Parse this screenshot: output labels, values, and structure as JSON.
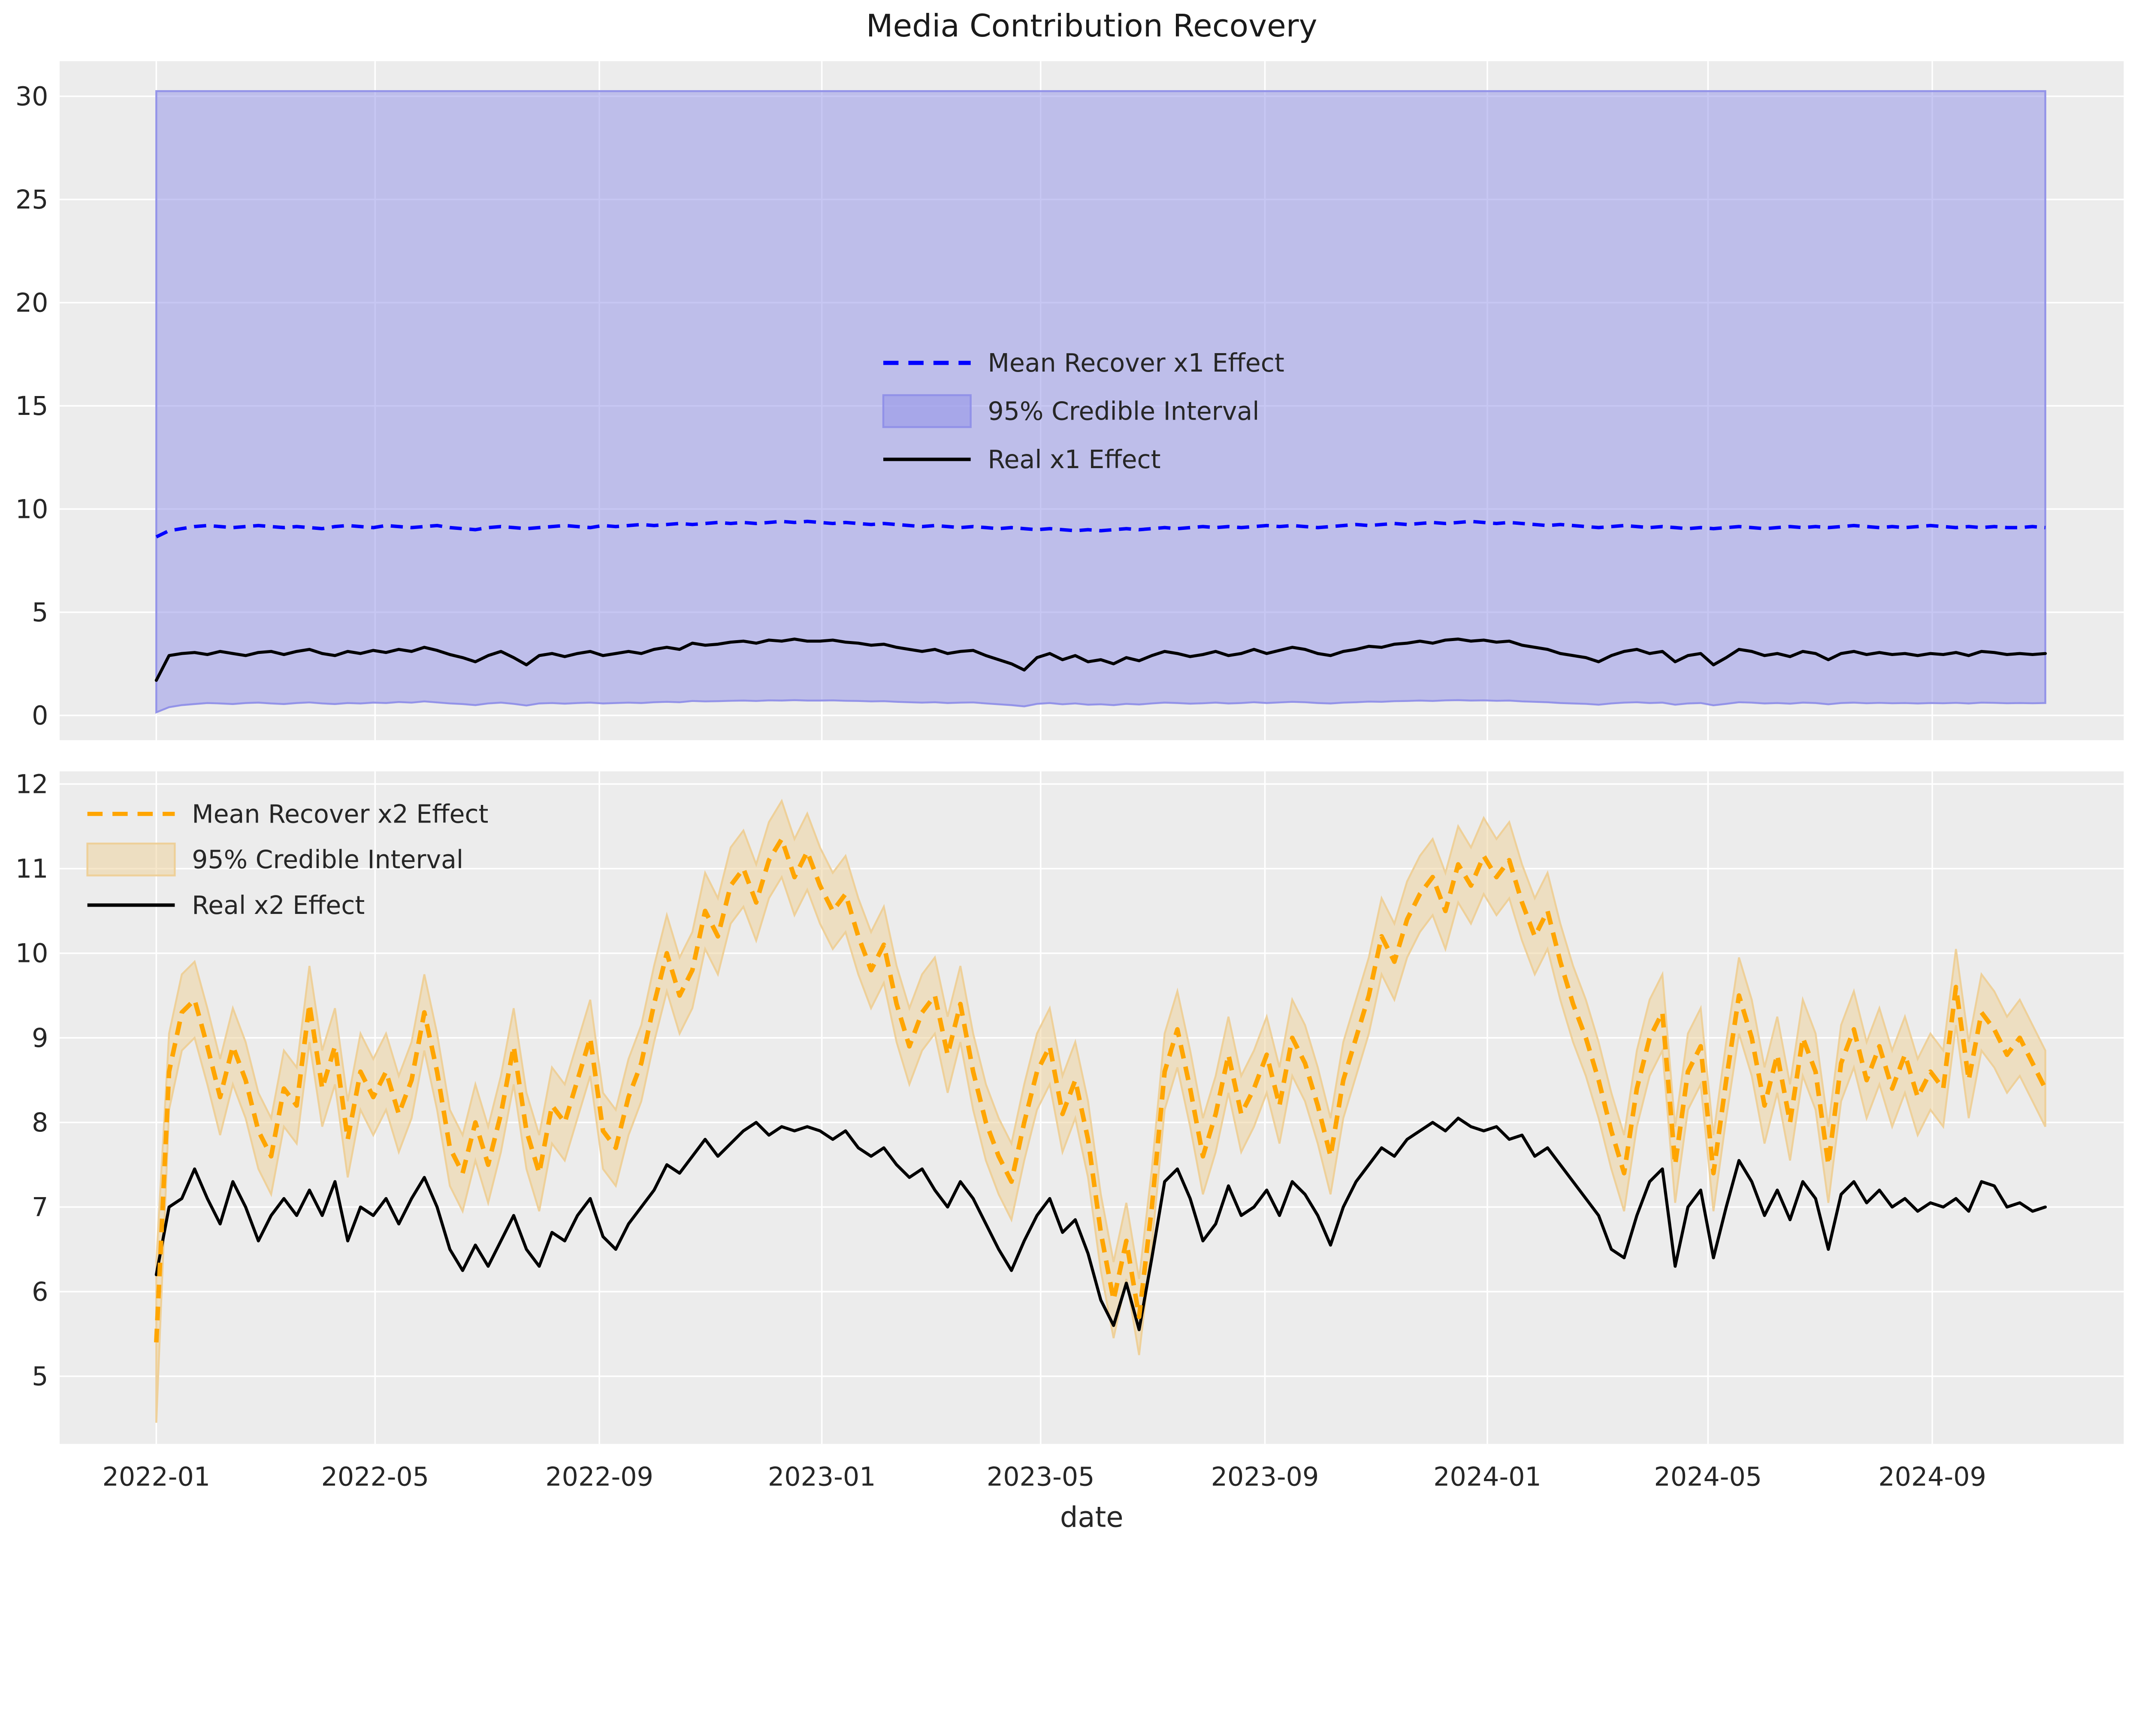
{
  "title": "Media Contribution Recovery",
  "x_axis": {
    "label": "date",
    "ticks": [
      "2022-01",
      "2022-05",
      "2022-09",
      "2023-01",
      "2023-05",
      "2023-09",
      "2024-01",
      "2024-05",
      "2024-09"
    ]
  },
  "colors": {
    "figure_bg": "#ffffff",
    "axes_bg": "#ececec",
    "grid": "#ffffff",
    "text": "#262626",
    "title_text": "#1a1a1a",
    "x1_mean": "#0000ff",
    "x1_band": "#8f8fe8",
    "x2_mean": "#ffa500",
    "x2_band": "#eecf96",
    "real_line": "#000000"
  },
  "chart_data": {
    "type": "line",
    "title": "Media Contribution Recovery",
    "xlabel": "date",
    "x_start": "2022-01-01",
    "x_step_days": 7,
    "n_points": 149,
    "xlim_days": [
      -53,
      1079
    ],
    "grid": true,
    "subplots": [
      {
        "id": "x1",
        "ylim": [
          -1.2,
          31.7
        ],
        "yticks": [
          0,
          5,
          10,
          15,
          20,
          25,
          30
        ],
        "legend_position": "center",
        "legend": [
          {
            "label": "Mean Recover x1 Effect",
            "swatch": "dashed-line",
            "color": "#0000ff"
          },
          {
            "label": "95% Credible Interval",
            "swatch": "patch",
            "color": "#8f8fe8"
          },
          {
            "label": "Real x1 Effect",
            "swatch": "line",
            "color": "#000000"
          }
        ],
        "series": {
          "mean": [
            8.65,
            8.95,
            9.05,
            9.15,
            9.2,
            9.15,
            9.1,
            9.15,
            9.2,
            9.15,
            9.1,
            9.15,
            9.1,
            9.05,
            9.15,
            9.2,
            9.15,
            9.1,
            9.2,
            9.15,
            9.1,
            9.15,
            9.2,
            9.1,
            9.05,
            9.0,
            9.1,
            9.15,
            9.1,
            9.05,
            9.1,
            9.15,
            9.2,
            9.15,
            9.1,
            9.2,
            9.15,
            9.2,
            9.25,
            9.2,
            9.25,
            9.3,
            9.25,
            9.3,
            9.35,
            9.3,
            9.35,
            9.3,
            9.35,
            9.4,
            9.35,
            9.4,
            9.35,
            9.3,
            9.35,
            9.3,
            9.25,
            9.3,
            9.25,
            9.2,
            9.15,
            9.2,
            9.15,
            9.1,
            9.15,
            9.1,
            9.05,
            9.1,
            9.05,
            9.0,
            9.05,
            9.0,
            8.95,
            9.0,
            8.95,
            9.0,
            9.05,
            9.0,
            9.05,
            9.1,
            9.05,
            9.1,
            9.15,
            9.1,
            9.15,
            9.1,
            9.15,
            9.2,
            9.15,
            9.2,
            9.15,
            9.1,
            9.15,
            9.2,
            9.25,
            9.2,
            9.25,
            9.3,
            9.25,
            9.3,
            9.35,
            9.3,
            9.35,
            9.4,
            9.35,
            9.3,
            9.35,
            9.3,
            9.25,
            9.2,
            9.25,
            9.2,
            9.15,
            9.1,
            9.15,
            9.2,
            9.15,
            9.1,
            9.15,
            9.1,
            9.05,
            9.1,
            9.05,
            9.1,
            9.15,
            9.1,
            9.05,
            9.1,
            9.15,
            9.1,
            9.15,
            9.1,
            9.15,
            9.2,
            9.15,
            9.1,
            9.15,
            9.1,
            9.15,
            9.2,
            9.15,
            9.1,
            9.15,
            9.1,
            9.15,
            9.1,
            9.1,
            9.15,
            9.1
          ],
          "real": [
            1.7,
            2.9,
            3.0,
            3.05,
            2.95,
            3.1,
            3.0,
            2.9,
            3.05,
            3.1,
            2.95,
            3.1,
            3.2,
            3.0,
            2.9,
            3.1,
            3.0,
            3.15,
            3.05,
            3.2,
            3.1,
            3.3,
            3.15,
            2.95,
            2.8,
            2.6,
            2.9,
            3.1,
            2.8,
            2.45,
            2.9,
            3.0,
            2.85,
            3.0,
            3.1,
            2.9,
            3.0,
            3.1,
            3.0,
            3.2,
            3.3,
            3.2,
            3.5,
            3.4,
            3.45,
            3.55,
            3.6,
            3.5,
            3.65,
            3.6,
            3.7,
            3.6,
            3.6,
            3.65,
            3.55,
            3.5,
            3.4,
            3.45,
            3.3,
            3.2,
            3.1,
            3.2,
            3.0,
            3.1,
            3.15,
            2.9,
            2.7,
            2.5,
            2.2,
            2.8,
            3.0,
            2.7,
            2.9,
            2.6,
            2.7,
            2.5,
            2.8,
            2.65,
            2.9,
            3.1,
            3.0,
            2.85,
            2.95,
            3.1,
            2.9,
            3.0,
            3.2,
            3.0,
            3.15,
            3.3,
            3.2,
            3.0,
            2.9,
            3.1,
            3.2,
            3.35,
            3.3,
            3.45,
            3.5,
            3.6,
            3.5,
            3.65,
            3.7,
            3.6,
            3.65,
            3.55,
            3.6,
            3.4,
            3.3,
            3.2,
            3.0,
            2.9,
            2.8,
            2.6,
            2.9,
            3.1,
            3.2,
            3.0,
            3.1,
            2.6,
            2.9,
            3.0,
            2.45,
            2.8,
            3.2,
            3.1,
            2.9,
            3.0,
            2.85,
            3.1,
            3.0,
            2.7,
            3.0,
            3.1,
            2.95,
            3.05,
            2.95,
            3.0,
            2.9,
            3.0,
            2.95,
            3.05,
            2.9,
            3.1,
            3.05,
            2.95,
            3.0,
            2.95,
            3.0
          ],
          "ci_lower": [
            0.15,
            0.4,
            0.5,
            0.55,
            0.6,
            0.58,
            0.55,
            0.6,
            0.62,
            0.58,
            0.55,
            0.6,
            0.63,
            0.58,
            0.55,
            0.6,
            0.58,
            0.62,
            0.6,
            0.65,
            0.62,
            0.68,
            0.63,
            0.58,
            0.55,
            0.5,
            0.58,
            0.62,
            0.56,
            0.48,
            0.58,
            0.6,
            0.57,
            0.6,
            0.62,
            0.58,
            0.6,
            0.62,
            0.6,
            0.64,
            0.66,
            0.64,
            0.7,
            0.68,
            0.69,
            0.71,
            0.72,
            0.7,
            0.73,
            0.72,
            0.74,
            0.72,
            0.72,
            0.73,
            0.71,
            0.7,
            0.68,
            0.69,
            0.66,
            0.64,
            0.62,
            0.64,
            0.6,
            0.62,
            0.63,
            0.58,
            0.54,
            0.5,
            0.44,
            0.56,
            0.6,
            0.54,
            0.58,
            0.52,
            0.54,
            0.5,
            0.56,
            0.53,
            0.58,
            0.62,
            0.6,
            0.57,
            0.59,
            0.62,
            0.58,
            0.6,
            0.64,
            0.6,
            0.63,
            0.66,
            0.64,
            0.6,
            0.58,
            0.62,
            0.64,
            0.67,
            0.66,
            0.69,
            0.7,
            0.72,
            0.7,
            0.73,
            0.74,
            0.72,
            0.73,
            0.71,
            0.72,
            0.68,
            0.66,
            0.64,
            0.6,
            0.58,
            0.56,
            0.52,
            0.58,
            0.62,
            0.64,
            0.6,
            0.62,
            0.52,
            0.58,
            0.6,
            0.49,
            0.56,
            0.64,
            0.62,
            0.58,
            0.6,
            0.57,
            0.62,
            0.6,
            0.54,
            0.6,
            0.62,
            0.59,
            0.61,
            0.59,
            0.6,
            0.58,
            0.6,
            0.59,
            0.61,
            0.58,
            0.62,
            0.61,
            0.59,
            0.6,
            0.59,
            0.6
          ],
          "ci_upper_constant": 30.25
        }
      },
      {
        "id": "x2",
        "ylim": [
          4.2,
          12.15
        ],
        "yticks": [
          5,
          6,
          7,
          8,
          9,
          10,
          11,
          12
        ],
        "legend_position": "upper-left",
        "legend": [
          {
            "label": "Mean Recover x2 Effect",
            "swatch": "dashed-line",
            "color": "#ffa500"
          },
          {
            "label": "95% Credible Interval",
            "swatch": "patch",
            "color": "#eecf96"
          },
          {
            "label": "Real x2 Effect",
            "swatch": "line",
            "color": "#000000"
          }
        ],
        "series": {
          "mean": [
            5.4,
            8.6,
            9.3,
            9.45,
            8.9,
            8.3,
            8.9,
            8.5,
            7.9,
            7.6,
            8.4,
            8.2,
            9.4,
            8.4,
            8.9,
            7.8,
            8.6,
            8.3,
            8.6,
            8.1,
            8.5,
            9.3,
            8.6,
            7.7,
            7.4,
            8.0,
            7.5,
            8.1,
            8.9,
            7.9,
            7.4,
            8.2,
            8.0,
            8.5,
            9.0,
            7.9,
            7.7,
            8.3,
            8.7,
            9.4,
            10.0,
            9.5,
            9.8,
            10.5,
            10.2,
            10.8,
            11.0,
            10.6,
            11.1,
            11.35,
            10.9,
            11.2,
            10.8,
            10.5,
            10.7,
            10.2,
            9.8,
            10.1,
            9.4,
            8.9,
            9.3,
            9.5,
            8.8,
            9.4,
            8.6,
            8.0,
            7.6,
            7.3,
            8.0,
            8.6,
            8.9,
            8.1,
            8.5,
            7.8,
            6.7,
            5.9,
            6.6,
            5.7,
            7.0,
            8.6,
            9.1,
            8.4,
            7.6,
            8.1,
            8.8,
            8.1,
            8.4,
            8.8,
            8.2,
            9.0,
            8.7,
            8.2,
            7.6,
            8.5,
            9.0,
            9.5,
            10.2,
            9.9,
            10.4,
            10.7,
            10.9,
            10.5,
            11.05,
            10.8,
            11.15,
            10.9,
            11.1,
            10.6,
            10.2,
            10.5,
            9.9,
            9.4,
            9.0,
            8.5,
            7.9,
            7.4,
            8.4,
            9.0,
            9.3,
            7.5,
            8.6,
            8.9,
            7.4,
            8.5,
            9.5,
            9.0,
            8.2,
            8.8,
            8.0,
            9.0,
            8.6,
            7.5,
            8.7,
            9.1,
            8.5,
            8.9,
            8.4,
            8.8,
            8.3,
            8.6,
            8.4,
            9.6,
            8.5,
            9.3,
            9.1,
            8.8,
            9.0,
            8.7,
            8.4
          ],
          "real": [
            6.2,
            7.0,
            7.1,
            7.45,
            7.1,
            6.8,
            7.3,
            7.0,
            6.6,
            6.9,
            7.1,
            6.9,
            7.2,
            6.9,
            7.3,
            6.6,
            7.0,
            6.9,
            7.1,
            6.8,
            7.1,
            7.35,
            7.0,
            6.5,
            6.25,
            6.55,
            6.3,
            6.6,
            6.9,
            6.5,
            6.3,
            6.7,
            6.6,
            6.9,
            7.1,
            6.65,
            6.5,
            6.8,
            7.0,
            7.2,
            7.5,
            7.4,
            7.6,
            7.8,
            7.6,
            7.75,
            7.9,
            8.0,
            7.85,
            7.95,
            7.9,
            7.95,
            7.9,
            7.8,
            7.9,
            7.7,
            7.6,
            7.7,
            7.5,
            7.35,
            7.45,
            7.2,
            7.0,
            7.3,
            7.1,
            6.8,
            6.5,
            6.25,
            6.6,
            6.9,
            7.1,
            6.7,
            6.85,
            6.45,
            5.9,
            5.6,
            6.1,
            5.55,
            6.4,
            7.3,
            7.45,
            7.1,
            6.6,
            6.8,
            7.25,
            6.9,
            7.0,
            7.2,
            6.9,
            7.3,
            7.15,
            6.9,
            6.55,
            7.0,
            7.3,
            7.5,
            7.7,
            7.6,
            7.8,
            7.9,
            8.0,
            7.9,
            8.05,
            7.95,
            7.9,
            7.95,
            7.8,
            7.85,
            7.6,
            7.7,
            7.5,
            7.3,
            7.1,
            6.9,
            6.5,
            6.4,
            6.9,
            7.3,
            7.45,
            6.3,
            7.0,
            7.2,
            6.4,
            7.0,
            7.55,
            7.3,
            6.9,
            7.2,
            6.85,
            7.3,
            7.1,
            6.5,
            7.15,
            7.3,
            7.05,
            7.2,
            7.0,
            7.1,
            6.95,
            7.05,
            7.0,
            7.1,
            6.95,
            7.3,
            7.25,
            7.0,
            7.05,
            6.95,
            7.0
          ],
          "ci_half_width": 0.45,
          "ci_half_width_first": 0.95
        }
      }
    ]
  }
}
